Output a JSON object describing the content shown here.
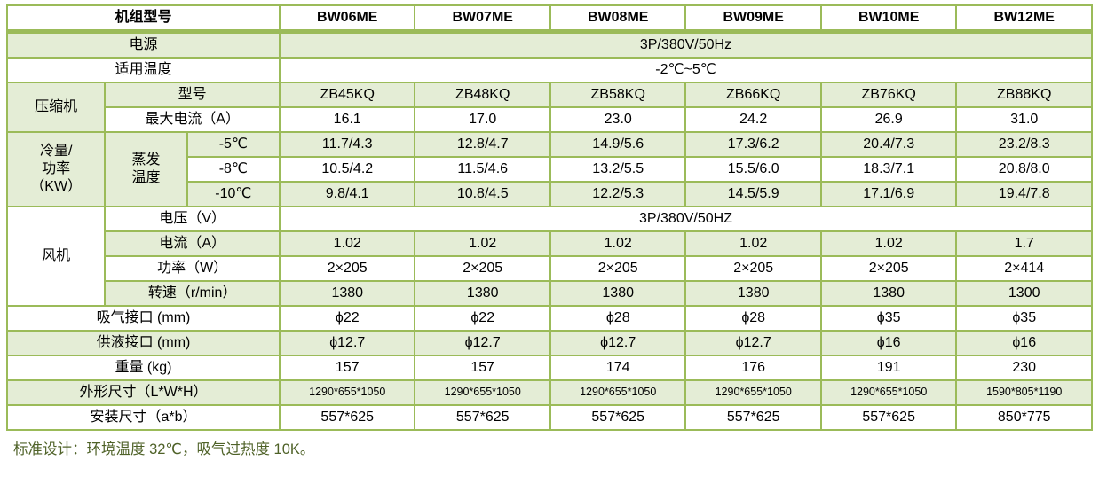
{
  "colors": {
    "table_border": "#9BBB59",
    "row_stripe_green": "#E4EDD6",
    "row_white": "#FFFFFF",
    "header_text": "#000000",
    "footer_text": "#4F6228"
  },
  "table": {
    "rows": [
      {
        "name": "header-row",
        "green": false,
        "header": true,
        "cells": [
          {
            "text": "机组型号",
            "colspan": 3
          },
          {
            "text": "BW06ME"
          },
          {
            "text": "BW07ME"
          },
          {
            "text": "BW08ME"
          },
          {
            "text": "BW09ME"
          },
          {
            "text": "BW10ME"
          },
          {
            "text": "BW12ME"
          }
        ]
      },
      {
        "name": "power-supply-row",
        "green": true,
        "cells": [
          {
            "text": "电源",
            "colspan": 3
          },
          {
            "text": "3P/380V/50Hz",
            "colspan": 6
          }
        ]
      },
      {
        "name": "applicable-temp-row",
        "green": false,
        "cells": [
          {
            "text": "适用温度",
            "colspan": 3
          },
          {
            "text": "-2℃~5℃",
            "colspan": 6
          }
        ]
      },
      {
        "name": "compressor-model-row",
        "green": true,
        "cells": [
          {
            "text": "压缩机",
            "rowspan": 2
          },
          {
            "text": "型号",
            "colspan": 2
          },
          {
            "text": "ZB45KQ"
          },
          {
            "text": "ZB48KQ"
          },
          {
            "text": "ZB58KQ"
          },
          {
            "text": "ZB66KQ"
          },
          {
            "text": "ZB76KQ"
          },
          {
            "text": "ZB88KQ"
          }
        ]
      },
      {
        "name": "compressor-max-current-row",
        "green": false,
        "cells": [
          {
            "text": "最大电流（A）",
            "colspan": 2
          },
          {
            "text": "16.1"
          },
          {
            "text": "17.0"
          },
          {
            "text": "23.0"
          },
          {
            "text": "24.2"
          },
          {
            "text": "26.9"
          },
          {
            "text": "31.0"
          }
        ]
      },
      {
        "name": "capacity-minus5-row",
        "green": true,
        "cells": [
          {
            "text": "冷量/\n功率\n（KW）",
            "rowspan": 3
          },
          {
            "text": "蒸发\n温度",
            "rowspan": 3
          },
          {
            "text": "-5℃"
          },
          {
            "text": "11.7/4.3"
          },
          {
            "text": "12.8/4.7"
          },
          {
            "text": "14.9/5.6"
          },
          {
            "text": "17.3/6.2"
          },
          {
            "text": "20.4/7.3"
          },
          {
            "text": "23.2/8.3"
          }
        ]
      },
      {
        "name": "capacity-minus8-row",
        "green": false,
        "cells": [
          {
            "text": "-8℃"
          },
          {
            "text": "10.5/4.2"
          },
          {
            "text": "11.5/4.6"
          },
          {
            "text": "13.2/5.5"
          },
          {
            "text": "15.5/6.0"
          },
          {
            "text": "18.3/7.1"
          },
          {
            "text": "20.8/8.0"
          }
        ]
      },
      {
        "name": "capacity-minus10-row",
        "green": true,
        "cells": [
          {
            "text": "-10℃"
          },
          {
            "text": "9.8/4.1"
          },
          {
            "text": "10.8/4.5"
          },
          {
            "text": "12.2/5.3"
          },
          {
            "text": "14.5/5.9"
          },
          {
            "text": "17.1/6.9"
          },
          {
            "text": "19.4/7.8"
          }
        ]
      },
      {
        "name": "fan-voltage-row",
        "green": false,
        "cells": [
          {
            "text": "风机",
            "rowspan": 4
          },
          {
            "text": "电压（V）",
            "colspan": 2
          },
          {
            "text": "3P/380V/50HZ",
            "colspan": 6
          }
        ]
      },
      {
        "name": "fan-current-row",
        "green": true,
        "cells": [
          {
            "text": "电流（A）",
            "colspan": 2
          },
          {
            "text": "1.02"
          },
          {
            "text": "1.02"
          },
          {
            "text": "1.02"
          },
          {
            "text": "1.02"
          },
          {
            "text": "1.02"
          },
          {
            "text": "1.7"
          }
        ]
      },
      {
        "name": "fan-power-row",
        "green": false,
        "cells": [
          {
            "text": "功率（W）",
            "colspan": 2
          },
          {
            "text": "2×205"
          },
          {
            "text": "2×205"
          },
          {
            "text": "2×205"
          },
          {
            "text": "2×205"
          },
          {
            "text": "2×205"
          },
          {
            "text": "2×414"
          }
        ]
      },
      {
        "name": "fan-speed-row",
        "green": true,
        "cells": [
          {
            "text": "转速（r/min）",
            "colspan": 2
          },
          {
            "text": "1380"
          },
          {
            "text": "1380"
          },
          {
            "text": "1380"
          },
          {
            "text": "1380"
          },
          {
            "text": "1380"
          },
          {
            "text": "1300"
          }
        ]
      },
      {
        "name": "suction-port-row",
        "green": false,
        "cells": [
          {
            "text": "吸气接口 (mm)",
            "colspan": 3
          },
          {
            "text": "ϕ22"
          },
          {
            "text": "ϕ22"
          },
          {
            "text": "ϕ28"
          },
          {
            "text": "ϕ28"
          },
          {
            "text": "ϕ35"
          },
          {
            "text": "ϕ35"
          }
        ]
      },
      {
        "name": "liquid-port-row",
        "green": true,
        "cells": [
          {
            "text": "供液接口 (mm)",
            "colspan": 3
          },
          {
            "text": "ϕ12.7"
          },
          {
            "text": "ϕ12.7"
          },
          {
            "text": "ϕ12.7"
          },
          {
            "text": "ϕ12.7"
          },
          {
            "text": "ϕ16"
          },
          {
            "text": "ϕ16"
          }
        ]
      },
      {
        "name": "weight-row",
        "green": false,
        "cells": [
          {
            "text": "重量 (kg)",
            "colspan": 3
          },
          {
            "text": "157"
          },
          {
            "text": "157"
          },
          {
            "text": "174"
          },
          {
            "text": "176"
          },
          {
            "text": "191"
          },
          {
            "text": "230"
          }
        ]
      },
      {
        "name": "dimensions-row",
        "green": true,
        "cells": [
          {
            "text": "外形尺寸（L*W*H）",
            "colspan": 3
          },
          {
            "text": "1290*655*1050",
            "small": true
          },
          {
            "text": "1290*655*1050",
            "small": true
          },
          {
            "text": "1290*655*1050",
            "small": true
          },
          {
            "text": "1290*655*1050",
            "small": true
          },
          {
            "text": "1290*655*1050",
            "small": true
          },
          {
            "text": "1590*805*1190",
            "small": true
          }
        ]
      },
      {
        "name": "install-dimensions-row",
        "green": false,
        "cells": [
          {
            "text": "安装尺寸（a*b）",
            "colspan": 3
          },
          {
            "text": "557*625"
          },
          {
            "text": "557*625"
          },
          {
            "text": "557*625"
          },
          {
            "text": "557*625"
          },
          {
            "text": "557*625"
          },
          {
            "text": "850*775"
          }
        ]
      }
    ]
  },
  "footer_note": "标准设计：环境温度 32℃，吸气过热度 10K。"
}
